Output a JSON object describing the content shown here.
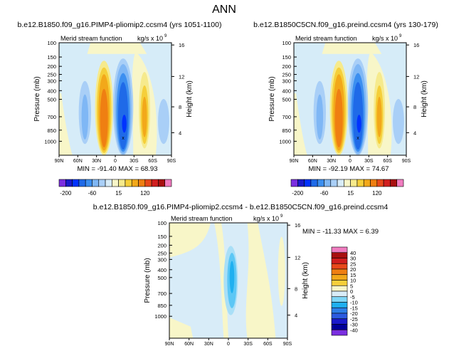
{
  "page_title": "ANN",
  "panels": [
    {
      "title": "b.e12.B1850.f09_g16.PIMP4-pliomip2.ccsm4 (yrs 1051-1100)",
      "label_left": "Merid stream function",
      "label_right": "kg/s x 10",
      "label_exp": "9",
      "stats": "MIN = -91.40   MAX =  68.93"
    },
    {
      "title": "b.e12.B1850C5CN.f09_g16.preind.ccsm4 (yrs 130-179)",
      "label_left": "Merid stream function",
      "label_right": "kg/s x 10",
      "label_exp": "9",
      "stats": "MIN = -92.19   MAX =  74.67"
    },
    {
      "title": "b.e12.B1850.f09_g16.PIMP4-pliomip2.ccsm4 - b.e12.B1850C5CN.f09_g16.preind.ccsm4",
      "label_left": "Merid stream function",
      "label_right": "kg/s x 10",
      "label_exp": "9",
      "stats": "MIN = -11.33   MAX =   6.39"
    }
  ],
  "chart_data": {
    "type": "heatmap",
    "xlabel": "",
    "ylabel": "Pressure (mb)",
    "y2label": "Height (km)",
    "x_ticks": [
      "90N",
      "60N",
      "30N",
      "0",
      "30S",
      "60S",
      "90S"
    ],
    "y_ticks": [
      "100",
      "150",
      "200",
      "250",
      "300",
      "400",
      "500",
      "700",
      "850",
      "1000"
    ],
    "y2_ticks_top": [
      "16",
      "12",
      "8",
      "4"
    ],
    "y2_ticks_bottom": [
      "16",
      "12",
      "8",
      "4"
    ],
    "colorbar_top": [
      "-200",
      "-60",
      "15",
      "120"
    ],
    "colorbar_bottom": [
      "40",
      "30",
      "25",
      "20",
      "15",
      "10",
      "5",
      "0",
      "-5",
      "-10",
      "-15",
      "-20",
      "-25",
      "-30",
      "-40"
    ],
    "colors": {
      "top_bar": [
        "#7b2fe0",
        "#1a1acb",
        "#0033ff",
        "#1f6ae8",
        "#3c8ff0",
        "#7fb7f5",
        "#a9cff7",
        "#d8ecf8",
        "#f8f6c8",
        "#f6ea8c",
        "#f5cf3a",
        "#f2a81a",
        "#ef7f12",
        "#e8491b",
        "#d11f1f",
        "#a81010",
        "#f07cc0"
      ],
      "bottom_bar": [
        "#f07cc0",
        "#a81010",
        "#d11f1f",
        "#e8491b",
        "#ef7f12",
        "#f2a81a",
        "#f5cf3a",
        "#f8f6c8",
        "#d8ecf8",
        "#7fd6f7",
        "#1fb0f0",
        "#2d7fe8",
        "#2b5be0",
        "#1a1acb",
        "#000099",
        "#7b2fe0"
      ]
    }
  }
}
